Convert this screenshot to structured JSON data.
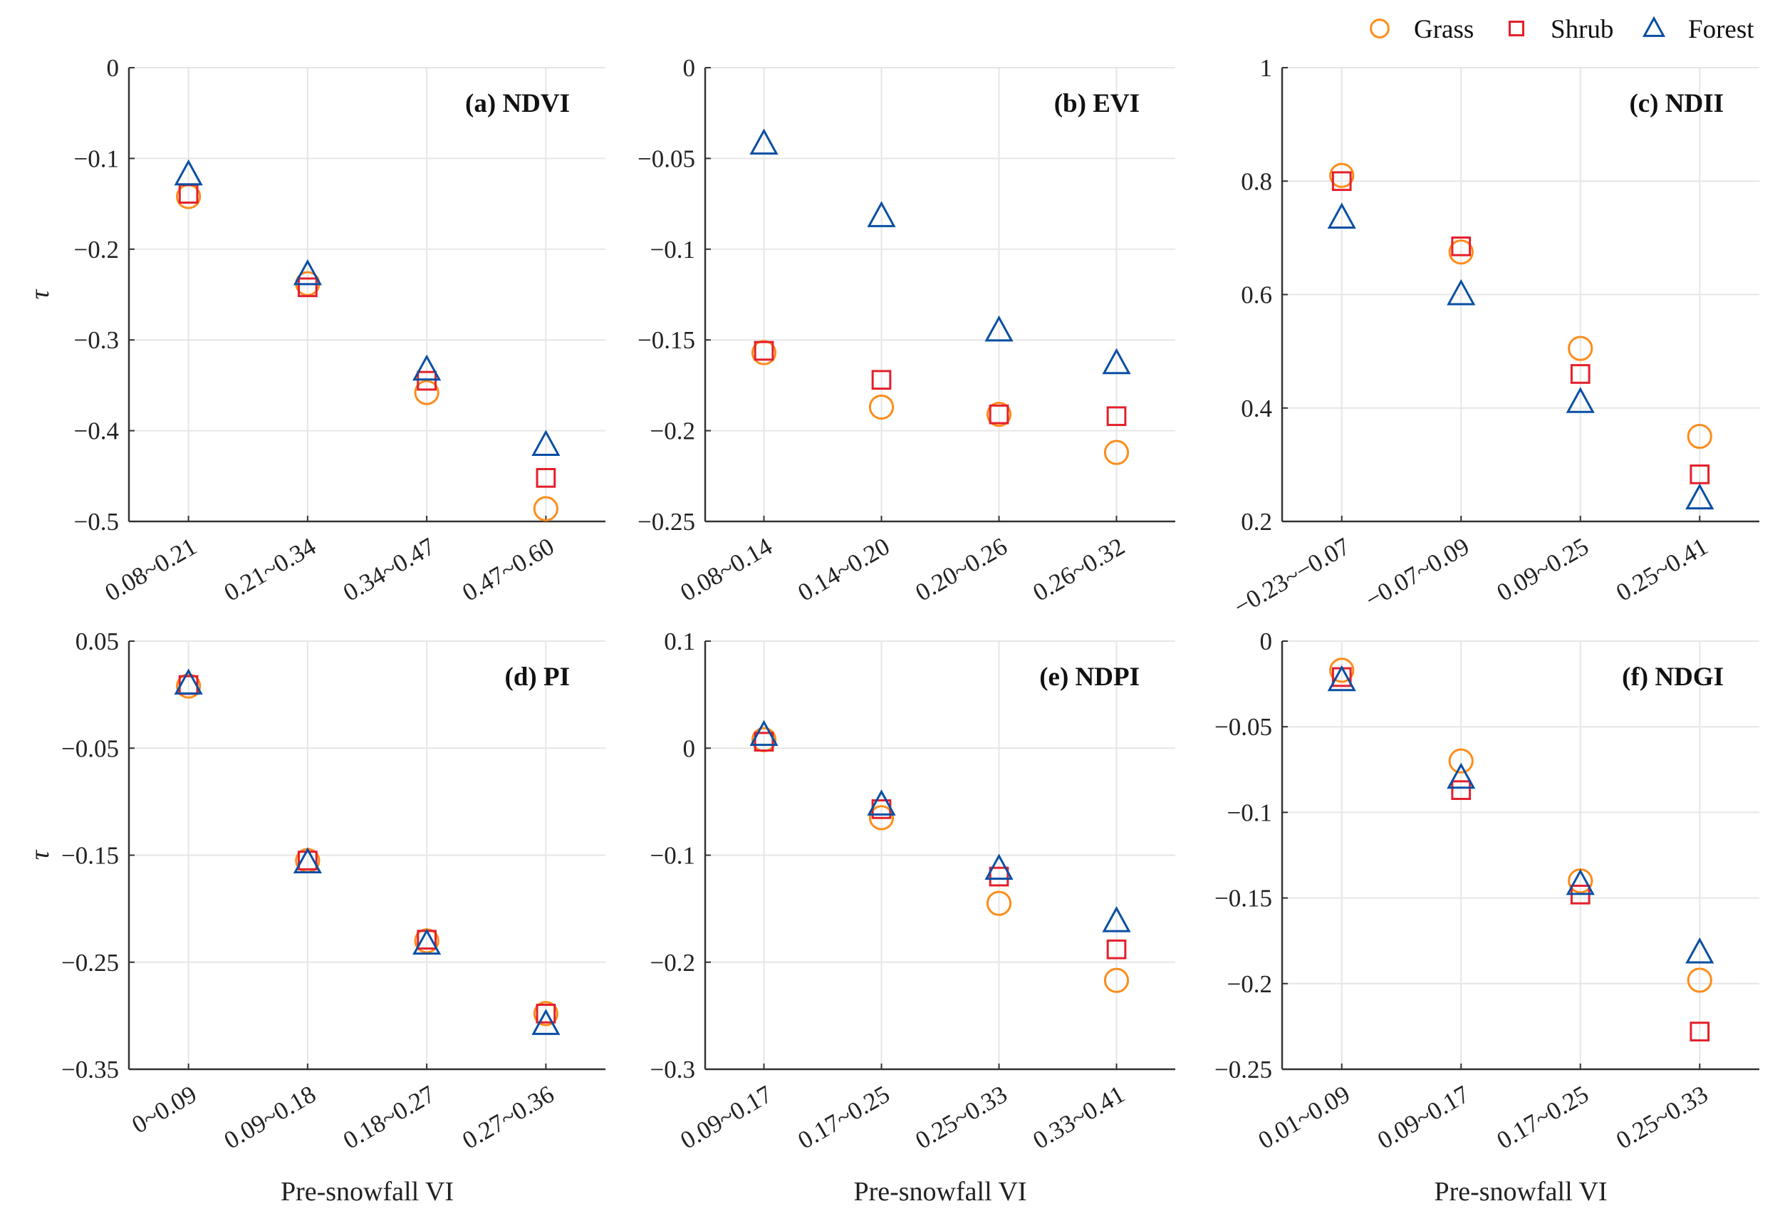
{
  "legend": [
    {
      "name": "Grass",
      "marker": "circle",
      "color": "#FF8C1A"
    },
    {
      "name": "Shrub",
      "marker": "square",
      "color": "#E3202B"
    },
    {
      "name": "Forest",
      "marker": "triangle",
      "color": "#0A4FA3"
    }
  ],
  "ylabel": "τ",
  "xlabel": "Pre-snowfall VI",
  "chart_data": [
    {
      "type": "scatter",
      "title": "(a) NDVI",
      "categories": [
        "0.08~0.21",
        "0.21~0.34",
        "0.34~0.47",
        "0.47~0.60"
      ],
      "ylim": [
        -0.5,
        0
      ],
      "yticks": [
        0,
        -0.1,
        -0.2,
        -0.3,
        -0.4,
        -0.5
      ],
      "ytick_labels": [
        "0",
        "−0.1",
        "−0.2",
        "−0.3",
        "−0.4",
        "−0.5"
      ],
      "series": [
        {
          "name": "Grass",
          "values": [
            -0.142,
            -0.238,
            -0.358,
            -0.486
          ]
        },
        {
          "name": "Shrub",
          "values": [
            -0.139,
            -0.242,
            -0.345,
            -0.452
          ]
        },
        {
          "name": "Forest",
          "values": [
            -0.118,
            -0.228,
            -0.333,
            -0.416
          ]
        }
      ]
    },
    {
      "type": "scatter",
      "title": "(b) EVI",
      "categories": [
        "0.08~0.14",
        "0.14~0.20",
        "0.20~0.26",
        "0.26~0.32"
      ],
      "ylim": [
        -0.25,
        0
      ],
      "yticks": [
        0,
        -0.05,
        -0.1,
        -0.15,
        -0.2,
        -0.25
      ],
      "ytick_labels": [
        "0",
        "−0.05",
        "−0.1",
        "−0.15",
        "−0.2",
        "−0.25"
      ],
      "series": [
        {
          "name": "Grass",
          "values": [
            -0.157,
            -0.187,
            -0.191,
            -0.212
          ]
        },
        {
          "name": "Shrub",
          "values": [
            -0.156,
            -0.172,
            -0.191,
            -0.192
          ]
        },
        {
          "name": "Forest",
          "values": [
            -0.042,
            -0.082,
            -0.145,
            -0.163
          ]
        }
      ]
    },
    {
      "type": "scatter",
      "title": "(c) NDII",
      "categories": [
        "−0.23~−0.07",
        "−0.07~0.09",
        "0.09~0.25",
        "0.25~0.41"
      ],
      "ylim": [
        0.2,
        1
      ],
      "yticks": [
        1,
        0.8,
        0.6,
        0.4,
        0.2
      ],
      "ytick_labels": [
        "1",
        "0.8",
        "0.6",
        "0.4",
        "0.2"
      ],
      "series": [
        {
          "name": "Grass",
          "values": [
            0.81,
            0.675,
            0.505,
            0.35
          ]
        },
        {
          "name": "Shrub",
          "values": [
            0.8,
            0.685,
            0.46,
            0.283
          ]
        },
        {
          "name": "Forest",
          "values": [
            0.735,
            0.6,
            0.41,
            0.24
          ]
        }
      ]
    },
    {
      "type": "scatter",
      "title": "(d) PI",
      "categories": [
        "0~0.09",
        "0.09~0.18",
        "0.18~0.27",
        "0.27~0.36"
      ],
      "ylim": [
        -0.35,
        0.05
      ],
      "yticks": [
        0.05,
        -0.05,
        -0.15,
        -0.25,
        -0.35
      ],
      "ytick_labels": [
        "0.05",
        "−0.05",
        "−0.15",
        "−0.25",
        "−0.35"
      ],
      "series": [
        {
          "name": "Grass",
          "values": [
            0.008,
            -0.155,
            -0.23,
            -0.298
          ]
        },
        {
          "name": "Shrub",
          "values": [
            0.009,
            -0.155,
            -0.229,
            -0.298
          ]
        },
        {
          "name": "Forest",
          "values": [
            0.01,
            -0.157,
            -0.233,
            -0.308
          ]
        }
      ]
    },
    {
      "type": "scatter",
      "title": "(e) NDPI",
      "categories": [
        "0.09~0.17",
        "0.17~0.25",
        "0.25~0.33",
        "0.33~0.41"
      ],
      "ylim": [
        -0.3,
        0.1
      ],
      "yticks": [
        0.1,
        0,
        -0.1,
        -0.2,
        -0.3
      ],
      "ytick_labels": [
        "0.1",
        "0",
        "−0.1",
        "−0.2",
        "−0.3"
      ],
      "series": [
        {
          "name": "Grass",
          "values": [
            0.008,
            -0.065,
            -0.145,
            -0.217
          ]
        },
        {
          "name": "Shrub",
          "values": [
            0.006,
            -0.057,
            -0.12,
            -0.188
          ]
        },
        {
          "name": "Forest",
          "values": [
            0.012,
            -0.053,
            -0.113,
            -0.162
          ]
        }
      ]
    },
    {
      "type": "scatter",
      "title": "(f) NDGI",
      "categories": [
        "0.01~0.09",
        "0.09~0.17",
        "0.17~0.25",
        "0.25~0.33"
      ],
      "ylim": [
        -0.25,
        0
      ],
      "yticks": [
        0,
        -0.05,
        -0.1,
        -0.15,
        -0.2,
        -0.25
      ],
      "ytick_labels": [
        "0",
        "−0.05",
        "−0.1",
        "−0.15",
        "−0.2",
        "−0.25"
      ],
      "series": [
        {
          "name": "Grass",
          "values": [
            -0.017,
            -0.07,
            -0.14,
            -0.198
          ]
        },
        {
          "name": "Shrub",
          "values": [
            -0.021,
            -0.087,
            -0.148,
            -0.228
          ]
        },
        {
          "name": "Forest",
          "values": [
            -0.023,
            -0.08,
            -0.142,
            -0.182
          ]
        }
      ]
    }
  ]
}
